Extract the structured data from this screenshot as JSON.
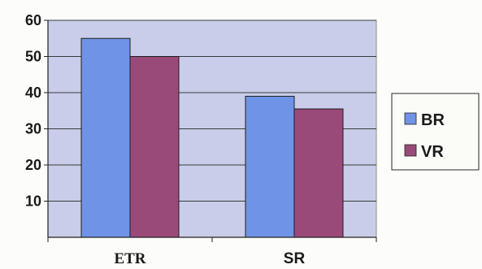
{
  "chart_data": {
    "type": "bar",
    "categories": [
      "ETR",
      "SR"
    ],
    "series": [
      {
        "name": "BR",
        "values": [
          55,
          39
        ],
        "color": "#6f93e6"
      },
      {
        "name": "VR",
        "values": [
          50,
          35.5
        ],
        "color": "#9a4a79"
      }
    ],
    "yticks": [
      "10",
      "20",
      "30",
      "40",
      "50",
      "60"
    ],
    "ylim": [
      0,
      60
    ],
    "grid": true,
    "legend": "right",
    "plot_background": "#c9cde9"
  }
}
